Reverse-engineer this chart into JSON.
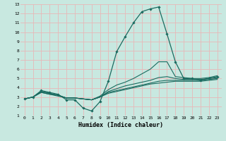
{
  "title": "",
  "xlabel": "Humidex (Indice chaleur)",
  "ylabel": "",
  "bg_color": "#c8e8e0",
  "grid_color": "#e8b8b8",
  "line_color": "#1a6b60",
  "xlim": [
    -0.5,
    23.5
  ],
  "ylim": [
    1,
    13
  ],
  "xticks": [
    0,
    1,
    2,
    3,
    4,
    5,
    6,
    7,
    8,
    9,
    10,
    11,
    12,
    13,
    14,
    15,
    16,
    17,
    18,
    19,
    20,
    21,
    22,
    23
  ],
  "yticks": [
    1,
    2,
    3,
    4,
    5,
    6,
    7,
    8,
    9,
    10,
    11,
    12,
    13
  ],
  "series": [
    {
      "x": [
        0,
        1,
        2,
        3,
        4,
        5,
        6,
        7,
        8,
        9,
        10,
        11,
        12,
        13,
        14,
        15,
        16,
        17,
        18,
        19,
        20,
        21,
        22,
        23
      ],
      "y": [
        2.8,
        3.0,
        3.7,
        3.5,
        3.3,
        2.7,
        2.7,
        1.8,
        1.5,
        2.5,
        4.7,
        7.9,
        9.5,
        11.0,
        12.2,
        12.5,
        12.7,
        9.8,
        6.8,
        5.0,
        5.0,
        4.8,
        5.0,
        5.2
      ],
      "marker": true
    },
    {
      "x": [
        0,
        1,
        2,
        3,
        4,
        5,
        6,
        7,
        8,
        9,
        10,
        11,
        12,
        13,
        14,
        15,
        16,
        17,
        18,
        19,
        20,
        21,
        22,
        23
      ],
      "y": [
        2.8,
        3.0,
        3.6,
        3.4,
        3.2,
        2.9,
        2.9,
        2.8,
        2.7,
        3.1,
        3.8,
        4.3,
        4.6,
        5.0,
        5.5,
        6.0,
        6.8,
        6.8,
        5.2,
        5.1,
        5.0,
        5.0,
        5.1,
        5.3
      ],
      "marker": false
    },
    {
      "x": [
        0,
        1,
        2,
        3,
        4,
        5,
        6,
        7,
        8,
        9,
        10,
        11,
        12,
        13,
        14,
        15,
        16,
        17,
        18,
        19,
        20,
        21,
        22,
        23
      ],
      "y": [
        2.8,
        3.0,
        3.6,
        3.4,
        3.2,
        2.9,
        2.9,
        2.8,
        2.7,
        3.0,
        3.6,
        3.9,
        4.2,
        4.4,
        4.6,
        4.8,
        5.1,
        5.2,
        5.0,
        4.9,
        4.9,
        4.9,
        5.0,
        5.1
      ],
      "marker": false
    },
    {
      "x": [
        0,
        1,
        2,
        3,
        4,
        5,
        6,
        7,
        8,
        9,
        10,
        11,
        12,
        13,
        14,
        15,
        16,
        17,
        18,
        19,
        20,
        21,
        22,
        23
      ],
      "y": [
        2.8,
        3.0,
        3.5,
        3.3,
        3.2,
        2.9,
        2.9,
        2.8,
        2.7,
        3.0,
        3.5,
        3.7,
        3.9,
        4.1,
        4.3,
        4.5,
        4.7,
        4.8,
        4.8,
        4.8,
        4.8,
        4.8,
        4.9,
        5.0
      ],
      "marker": false
    },
    {
      "x": [
        0,
        1,
        2,
        3,
        4,
        5,
        6,
        7,
        8,
        9,
        10,
        11,
        12,
        13,
        14,
        15,
        16,
        17,
        18,
        19,
        20,
        21,
        22,
        23
      ],
      "y": [
        2.8,
        3.0,
        3.5,
        3.3,
        3.1,
        2.9,
        2.9,
        2.8,
        2.7,
        3.0,
        3.4,
        3.6,
        3.8,
        4.0,
        4.2,
        4.4,
        4.5,
        4.6,
        4.7,
        4.7,
        4.7,
        4.7,
        4.8,
        4.9
      ],
      "marker": false
    }
  ]
}
